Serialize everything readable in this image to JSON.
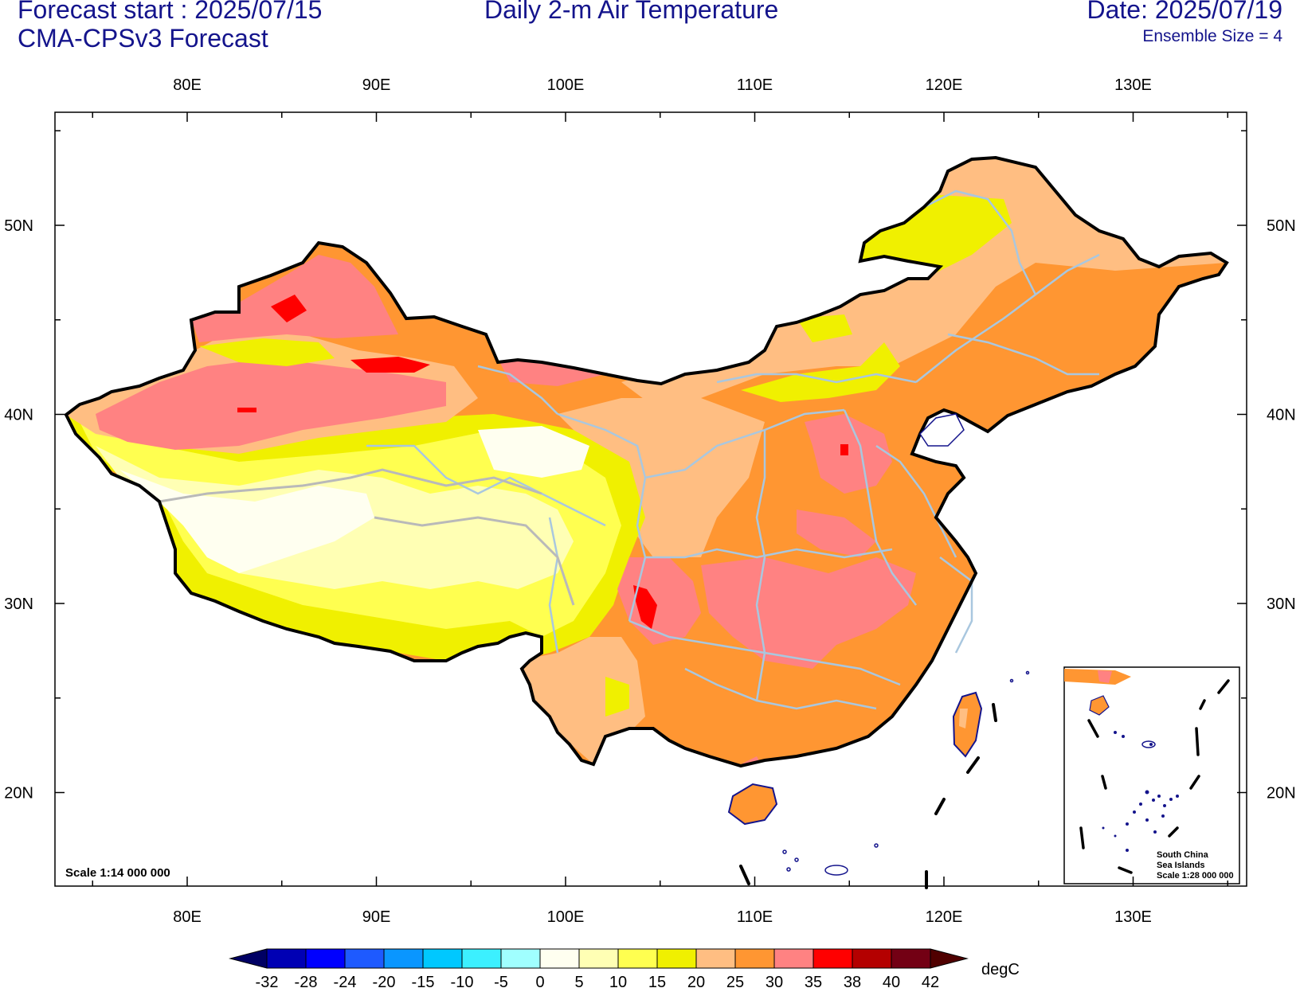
{
  "header": {
    "forecast_start": "Forecast start : 2025/07/15",
    "model": "CMA-CPSv3 Forecast",
    "title": "Daily 2-m Air Temperature",
    "date": "Date: 2025/07/19",
    "ensemble": "Ensemble Size = 4"
  },
  "map": {
    "scale_text": "Scale 1:14 000 000",
    "lon_labels": [
      "80E",
      "90E",
      "100E",
      "110E",
      "120E",
      "130E"
    ],
    "lat_labels": [
      "50N",
      "40N",
      "30N",
      "20N"
    ],
    "inset": {
      "line1": "South China",
      "line2": "Sea Islands",
      "line3": "Scale 1:28 000 000"
    },
    "colors": {
      "frame": "#000000",
      "border_province": "#a9c7df",
      "coast": "#14148c"
    }
  },
  "colorbar": {
    "unit": "degC",
    "labels": [
      "-32",
      "-28",
      "-24",
      "-20",
      "-15",
      "-10",
      "-5",
      "0",
      "5",
      "10",
      "15",
      "20",
      "25",
      "30",
      "35",
      "38",
      "40",
      "42"
    ],
    "colors": [
      "#000064",
      "#0000b4",
      "#0000ff",
      "#1e5aff",
      "#0a96ff",
      "#00c8ff",
      "#3cf0ff",
      "#a0ffff",
      "#fffff0",
      "#ffffb4",
      "#ffff50",
      "#f0f000",
      "#ffbe82",
      "#ff9632",
      "#ff8282",
      "#ff0000",
      "#b40000",
      "#730014",
      "#500000"
    ]
  }
}
